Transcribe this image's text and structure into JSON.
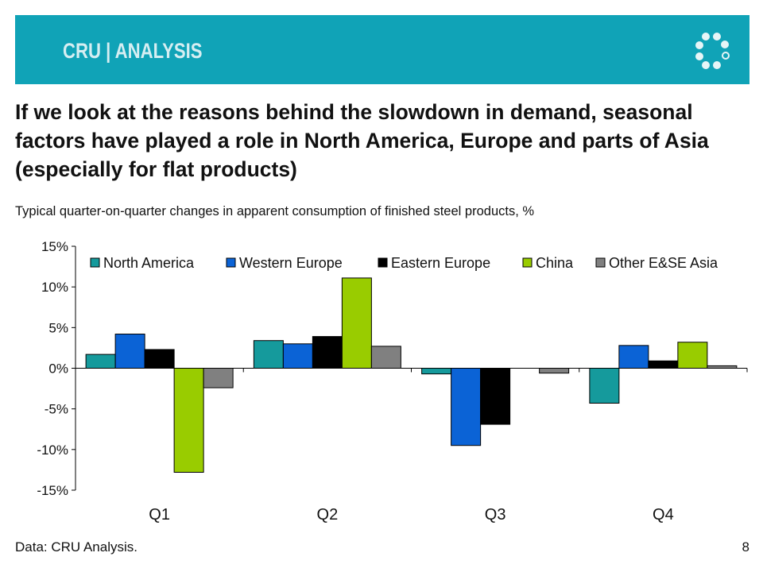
{
  "header": {
    "brand_text": "CRU | ANALYSIS",
    "logo_icon": "cru-ring-icon",
    "banner_color": "#10a3b7"
  },
  "headline": "If we look at the reasons behind the slowdown in demand, seasonal factors have played a role in North America, Europe and parts of Asia (especially for flat products)",
  "subtitle": "Typical quarter-on-quarter changes in apparent consumption of finished steel products, %",
  "chart_data": {
    "type": "bar",
    "categories": [
      "Q1",
      "Q2",
      "Q3",
      "Q4"
    ],
    "series": [
      {
        "name": "North America",
        "color": "#159a9c",
        "values": [
          1.7,
          3.4,
          -0.7,
          -4.3
        ]
      },
      {
        "name": "Western Europe",
        "color": "#0b63d6",
        "values": [
          4.2,
          3.0,
          -9.5,
          2.8
        ]
      },
      {
        "name": "Eastern Europe",
        "color": "#000000",
        "values": [
          2.3,
          3.9,
          -6.9,
          0.9
        ]
      },
      {
        "name": "China",
        "color": "#99cc00",
        "values": [
          -12.8,
          11.1,
          0,
          3.2
        ]
      },
      {
        "name": "Other E&SE Asia",
        "color": "#808080",
        "values": [
          -2.4,
          2.7,
          -0.6,
          0.3
        ]
      }
    ],
    "ylim": [
      -15,
      15
    ],
    "yticks": [
      15,
      10,
      5,
      0,
      -5,
      -10,
      -15
    ],
    "ytick_labels": [
      "15%",
      "10%",
      "5%",
      "0%",
      "-5%",
      "-10%",
      "-15%"
    ],
    "legend_position": "top",
    "grid": false,
    "xlabel": "",
    "ylabel": ""
  },
  "footer": {
    "source": "Data: CRU Analysis.",
    "page_number": "8"
  }
}
